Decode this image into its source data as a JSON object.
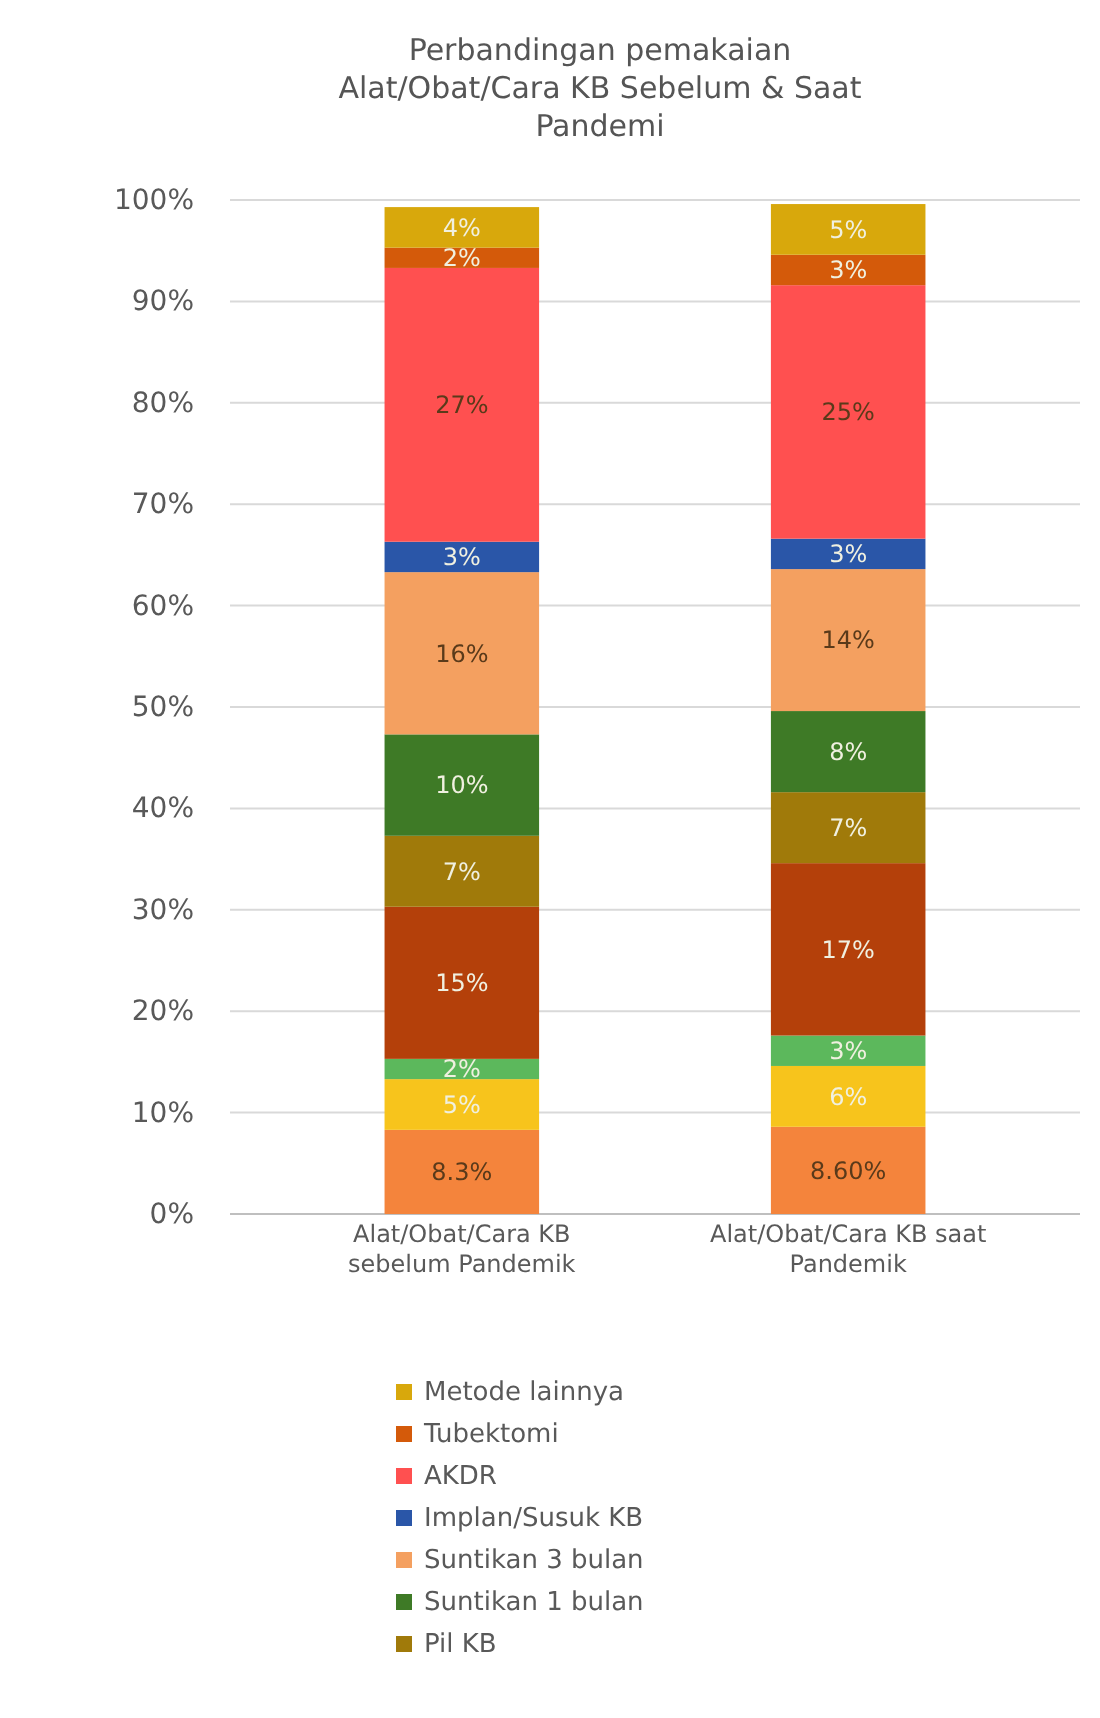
{
  "chart_data": {
    "type": "bar",
    "title": "Perbandingan pemakaian Alat/Obat/Cara KB Sebelum & Saat Pandemi",
    "categories": [
      "Alat/Obat/Cara KB sebelum Pandemik",
      "Alat/Obat/Cara KB saat Pandemik"
    ],
    "stacked": true,
    "ylim": [
      0,
      100
    ],
    "yticks": [
      {
        "value": 0,
        "label": "0%"
      },
      {
        "value": 10,
        "label": "10%"
      },
      {
        "value": 20,
        "label": "20%"
      },
      {
        "value": 30,
        "label": "30%"
      },
      {
        "value": 40,
        "label": "40%"
      },
      {
        "value": 50,
        "label": "50%"
      },
      {
        "value": 60,
        "label": "60%"
      },
      {
        "value": 70,
        "label": "70%"
      },
      {
        "value": 80,
        "label": "80%"
      },
      {
        "value": 90,
        "label": "90%"
      },
      {
        "value": 100,
        "label": "100%"
      }
    ],
    "grid": "y",
    "legend": "bottom",
    "series": [
      {
        "color": "#f4843c",
        "values": [
          8.3,
          8.6
        ],
        "value_labels": [
          "8.3%",
          "8.60%"
        ]
      },
      {
        "color": "#f7c41c",
        "values": [
          5,
          6
        ],
        "value_labels": [
          "5%",
          "6%"
        ]
      },
      {
        "color": "#5cb85c",
        "values": [
          2,
          3
        ],
        "value_labels": [
          "2%",
          "3%"
        ]
      },
      {
        "color": "#b4400a",
        "values": [
          15,
          17
        ],
        "value_labels": [
          "15%",
          "17%"
        ]
      },
      {
        "name": "Pil KB",
        "color": "#a07a0a",
        "values": [
          7,
          7
        ],
        "value_labels": [
          "7%",
          "7%"
        ]
      },
      {
        "name": "Suntikan 1 bulan",
        "color": "#3e7a26",
        "values": [
          10,
          8
        ],
        "value_labels": [
          "10%",
          "8%"
        ]
      },
      {
        "name": "Suntikan 3 bulan",
        "color": "#f4a060",
        "values": [
          16,
          14
        ],
        "value_labels": [
          "16%",
          "14%"
        ]
      },
      {
        "name": "Implan/Susuk KB",
        "color": "#2a56a8",
        "values": [
          3,
          3
        ],
        "value_labels": [
          "3%",
          "3%"
        ]
      },
      {
        "name": "AKDR",
        "color": "#ff5050",
        "values": [
          27,
          25
        ],
        "value_labels": [
          "27%",
          "25%"
        ]
      },
      {
        "name": "Tubektomi",
        "color": "#d45a0a",
        "values": [
          2,
          3
        ],
        "value_labels": [
          "2%",
          "3%"
        ]
      },
      {
        "name": "Metode lainnya",
        "color": "#d8a80c",
        "values": [
          4,
          5
        ],
        "value_labels": [
          "4%",
          "5%"
        ]
      }
    ]
  }
}
